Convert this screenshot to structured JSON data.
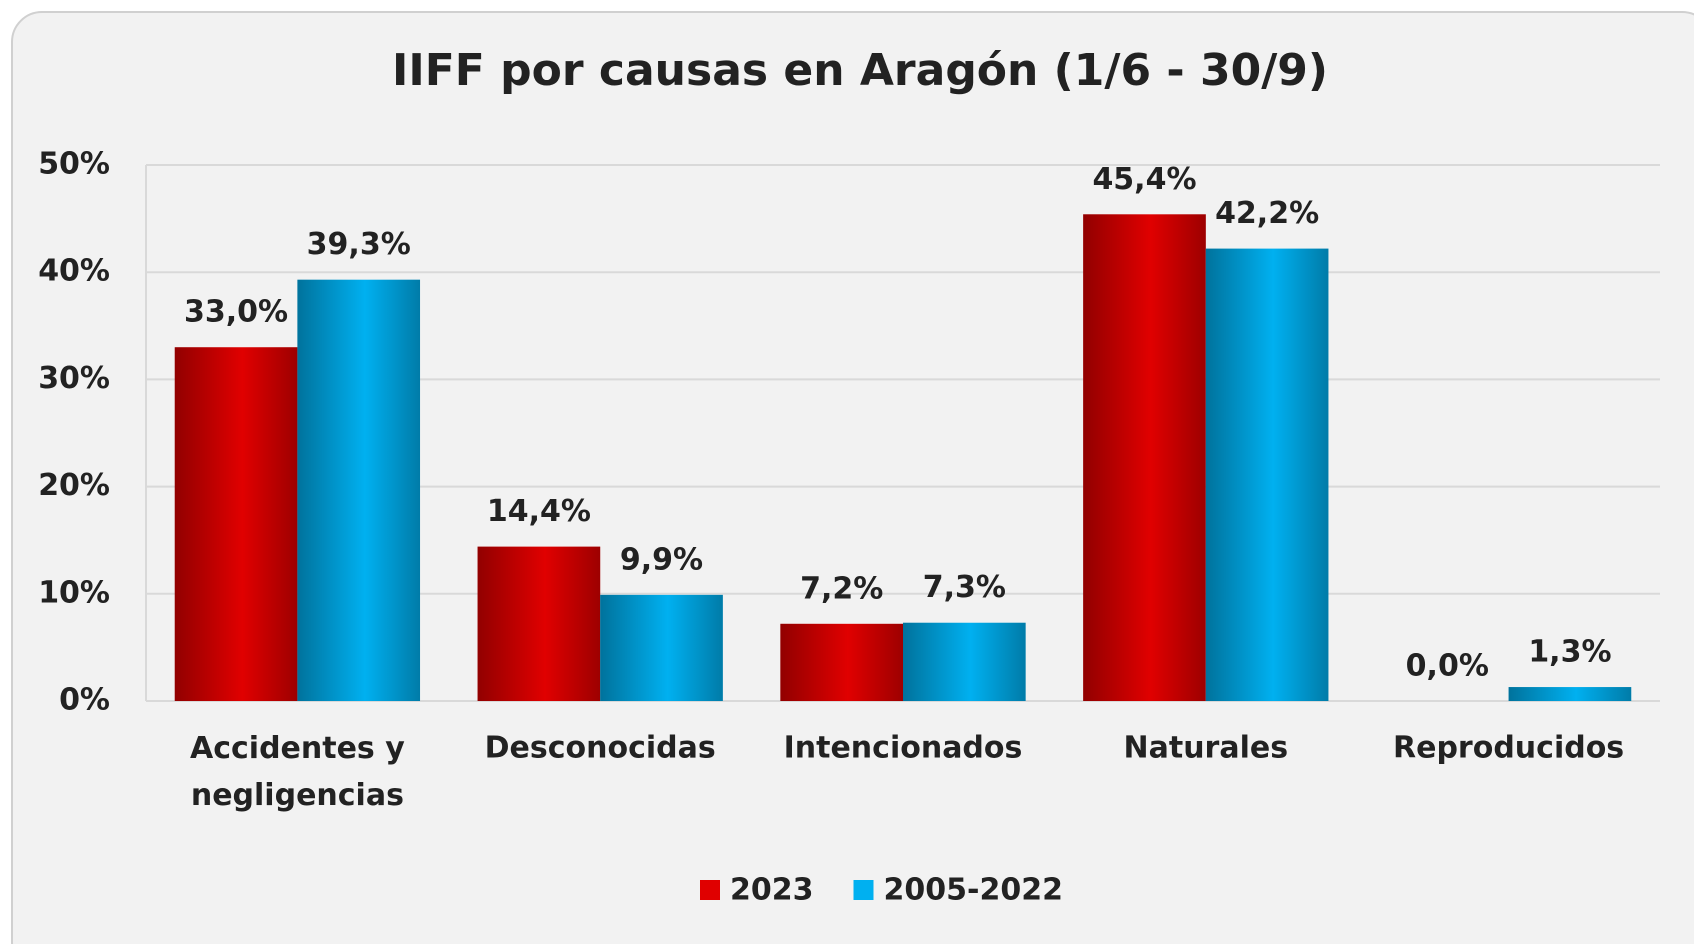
{
  "chart_data": {
    "type": "bar",
    "title": "IIFF por causas en Aragón (1/6 - 30/9)",
    "categories": [
      "Accidentes y negligencias",
      "Desconocidas",
      "Intencionados",
      "Naturales",
      "Reproducidos"
    ],
    "series": [
      {
        "name": "2023",
        "color": "#e00000",
        "values": [
          33.0,
          14.4,
          7.2,
          45.4,
          0.0
        ],
        "value_labels": [
          "33,0%",
          "14,4%",
          "7,2%",
          "45,4%",
          "0,0%"
        ]
      },
      {
        "name": "2005-2022",
        "color": "#00b0f0",
        "values": [
          39.3,
          9.9,
          7.3,
          42.2,
          1.3
        ],
        "value_labels": [
          "39,3%",
          "9,9%",
          "7,3%",
          "42,2%",
          "1,3%"
        ]
      }
    ],
    "ylim": [
      0,
      50
    ],
    "yticks": [
      {
        "value": 0,
        "label": "0%"
      },
      {
        "value": 10,
        "label": "10%"
      },
      {
        "value": 20,
        "label": "20%"
      },
      {
        "value": 30,
        "label": "30%"
      },
      {
        "value": 40,
        "label": "40%"
      },
      {
        "value": 50,
        "label": "50%"
      }
    ],
    "grid": true,
    "legend": "bottom"
  }
}
